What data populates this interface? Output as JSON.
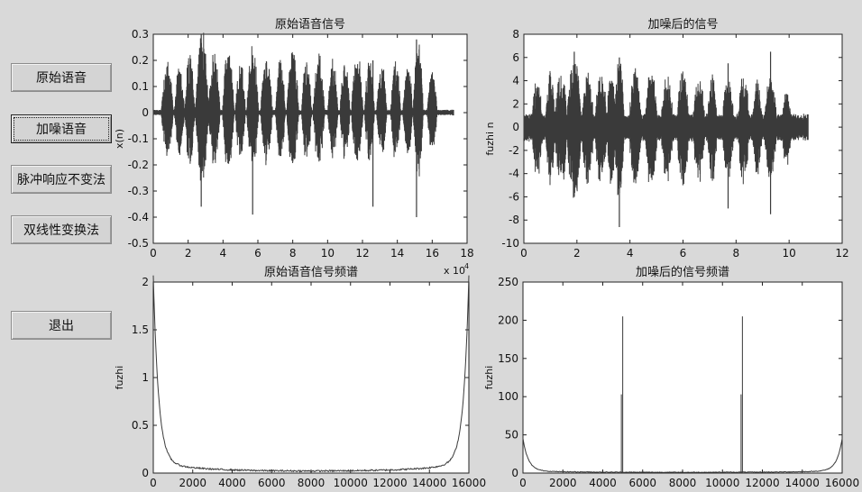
{
  "buttons": [
    {
      "label": "原始语音"
    },
    {
      "label": "加噪语音"
    },
    {
      "label": "脉冲响应不变法"
    },
    {
      "label": "双线性变换法"
    },
    {
      "label": "退出"
    }
  ],
  "chart_data": [
    {
      "type": "line",
      "title": "原始语音信号",
      "xlabel": "",
      "ylabel": "x(n)",
      "xlim": [
        0,
        18
      ],
      "ylim": [
        -0.5,
        0.3
      ],
      "x_ticks": [
        "0",
        "2",
        "4",
        "6",
        "8",
        "10",
        "12",
        "14",
        "16",
        "18"
      ],
      "y_ticks": [
        "-0.5",
        "-0.4",
        "-0.3",
        "-0.2",
        "-0.1",
        "0",
        "0.1",
        "0.2",
        "0.3"
      ],
      "x_multiplier": "x 10",
      "x_multiplier_exp": "4",
      "signal_end": 17.2,
      "bursts": [
        {
          "x": 0.8,
          "amp": 0.2,
          "w": 0.35
        },
        {
          "x": 1.5,
          "amp": 0.18,
          "w": 0.3
        },
        {
          "x": 2.1,
          "amp": 0.22,
          "w": 0.3
        },
        {
          "x": 2.8,
          "amp": 0.3,
          "w": 0.4
        },
        {
          "x": 3.5,
          "amp": 0.22,
          "w": 0.35
        },
        {
          "x": 4.3,
          "amp": 0.24,
          "w": 0.35
        },
        {
          "x": 5.0,
          "amp": 0.2,
          "w": 0.3
        },
        {
          "x": 5.7,
          "amp": 0.25,
          "w": 0.35
        },
        {
          "x": 6.5,
          "amp": 0.22,
          "w": 0.35
        },
        {
          "x": 7.3,
          "amp": 0.2,
          "w": 0.3
        },
        {
          "x": 8.0,
          "amp": 0.24,
          "w": 0.35
        },
        {
          "x": 8.8,
          "amp": 0.2,
          "w": 0.3
        },
        {
          "x": 9.5,
          "amp": 0.22,
          "w": 0.35
        },
        {
          "x": 10.3,
          "amp": 0.2,
          "w": 0.3
        },
        {
          "x": 11.0,
          "amp": 0.19,
          "w": 0.3
        },
        {
          "x": 11.7,
          "amp": 0.22,
          "w": 0.35
        },
        {
          "x": 12.4,
          "amp": 0.2,
          "w": 0.3
        },
        {
          "x": 13.1,
          "amp": 0.18,
          "w": 0.3
        },
        {
          "x": 13.9,
          "amp": 0.2,
          "w": 0.3
        },
        {
          "x": 14.6,
          "amp": 0.18,
          "w": 0.3
        },
        {
          "x": 15.2,
          "amp": 0.28,
          "w": 0.3
        },
        {
          "x": 16.0,
          "amp": 0.16,
          "w": 0.3
        }
      ],
      "spikes": [
        {
          "x": 2.75,
          "y": 0.3,
          "ny": -0.36
        },
        {
          "x": 5.7,
          "y": 0.22,
          "ny": -0.39
        },
        {
          "x": 12.6,
          "y": 0.2,
          "ny": -0.36
        },
        {
          "x": 15.1,
          "y": 0.28,
          "ny": -0.4
        }
      ]
    },
    {
      "type": "line",
      "title": "加噪后的信号",
      "xlabel": "",
      "ylabel": "fuzhi n",
      "xlim": [
        0,
        12
      ],
      "ylim": [
        -10,
        8
      ],
      "x_ticks": [
        "0",
        "2",
        "4",
        "6",
        "8",
        "10",
        "12"
      ],
      "y_ticks": [
        "-10",
        "-8",
        "-6",
        "-4",
        "-2",
        "0",
        "2",
        "4",
        "6",
        "8"
      ],
      "signal_end": 10.7,
      "noise_amp": 1.0,
      "bursts": [
        {
          "x": 0.5,
          "amp": 4.0,
          "w": 0.25
        },
        {
          "x": 1.0,
          "amp": 4.5,
          "w": 0.2
        },
        {
          "x": 1.4,
          "amp": 5.0,
          "w": 0.25
        },
        {
          "x": 1.9,
          "amp": 6.0,
          "w": 0.3
        },
        {
          "x": 2.4,
          "amp": 5.0,
          "w": 0.25
        },
        {
          "x": 2.9,
          "amp": 5.0,
          "w": 0.25
        },
        {
          "x": 3.3,
          "amp": 4.5,
          "w": 0.2
        },
        {
          "x": 3.6,
          "amp": 6.0,
          "w": 0.2
        },
        {
          "x": 4.2,
          "amp": 5.0,
          "w": 0.25
        },
        {
          "x": 4.8,
          "amp": 5.0,
          "w": 0.25
        },
        {
          "x": 5.4,
          "amp": 4.5,
          "w": 0.25
        },
        {
          "x": 6.0,
          "amp": 5.0,
          "w": 0.25
        },
        {
          "x": 6.6,
          "amp": 4.5,
          "w": 0.25
        },
        {
          "x": 7.1,
          "amp": 4.5,
          "w": 0.2
        },
        {
          "x": 7.7,
          "amp": 4.0,
          "w": 0.25
        },
        {
          "x": 8.3,
          "amp": 4.5,
          "w": 0.25
        },
        {
          "x": 8.8,
          "amp": 4.0,
          "w": 0.2
        },
        {
          "x": 9.3,
          "amp": 5.0,
          "w": 0.25
        },
        {
          "x": 9.9,
          "amp": 3.0,
          "w": 0.2
        }
      ],
      "spikes": [
        {
          "x": 1.9,
          "y": 6.5,
          "ny": -6.0
        },
        {
          "x": 3.6,
          "y": 6.0,
          "ny": -8.6
        },
        {
          "x": 7.7,
          "y": 5.5,
          "ny": -7.0
        },
        {
          "x": 9.3,
          "y": 6.5,
          "ny": -7.5
        }
      ]
    },
    {
      "type": "line",
      "title": "原始语音信号频谱",
      "xlabel": "",
      "ylabel": "fuzhi",
      "xlim": [
        0,
        16000
      ],
      "ylim": [
        0,
        2
      ],
      "x_ticks": [
        "0",
        "2000",
        "4000",
        "6000",
        "8000",
        "10000",
        "12000",
        "14000",
        "16000"
      ],
      "y_ticks": [
        "0",
        "0.5",
        "1",
        "1.5",
        "2"
      ],
      "edge_peak": 1.95,
      "floor": 0.02
    },
    {
      "type": "line",
      "title": "加噪后的信号频谱",
      "xlabel": "",
      "ylabel": "fuzhi",
      "xlim": [
        0,
        16000
      ],
      "ylim": [
        0,
        250
      ],
      "x_ticks": [
        "0",
        "2000",
        "4000",
        "6000",
        "8000",
        "10000",
        "12000",
        "14000",
        "16000"
      ],
      "y_ticks": [
        "0",
        "50",
        "100",
        "150",
        "200",
        "250"
      ],
      "edge_peak": 42,
      "floor": 1,
      "spectral_lines": [
        {
          "x": 5000,
          "y": 205,
          "y2": 103
        },
        {
          "x": 11000,
          "y": 205,
          "y2": 103
        }
      ]
    }
  ]
}
